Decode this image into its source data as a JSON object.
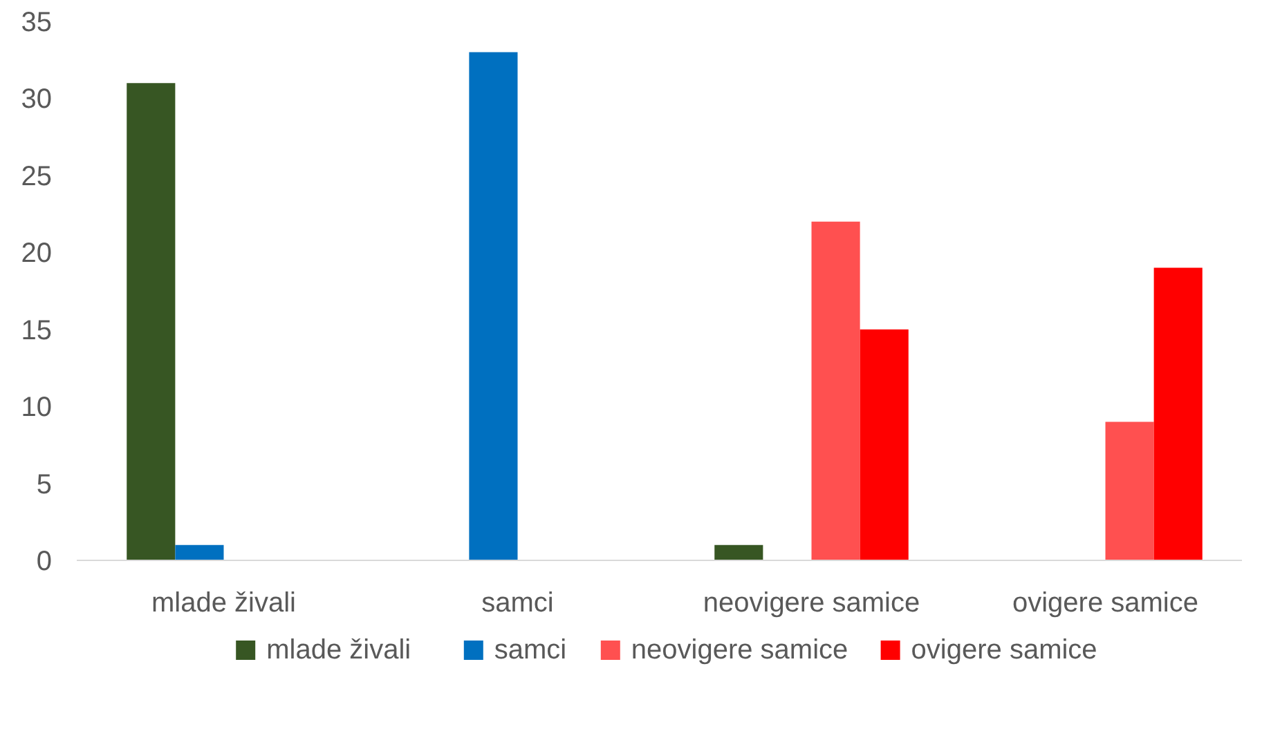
{
  "chart_data": {
    "type": "bar",
    "categories": [
      "mlade živali",
      "samci",
      "neovigere samice",
      "ovigere samice"
    ],
    "series": [
      {
        "name": "mlade živali",
        "color": "#375623",
        "values": [
          31,
          0,
          1,
          0
        ]
      },
      {
        "name": "samci",
        "color": "#0070c0",
        "values": [
          1,
          33,
          0,
          0
        ]
      },
      {
        "name": "neovigere samice",
        "color": "#ff5050",
        "values": [
          0,
          0,
          22,
          9
        ]
      },
      {
        "name": "ovigere samice",
        "color": "#ff0000",
        "values": [
          0,
          0,
          15,
          19
        ]
      }
    ],
    "ylim": [
      0,
      35
    ],
    "yticks": [
      0,
      5,
      10,
      15,
      20,
      25,
      30,
      35
    ],
    "grid": false,
    "legend": "bottom"
  }
}
